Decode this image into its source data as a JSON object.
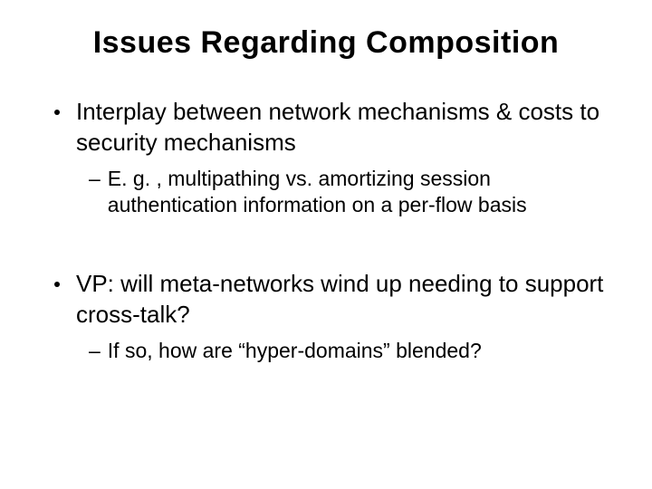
{
  "slide": {
    "title": "Issues Regarding Composition",
    "sections": [
      {
        "bullet": "Interplay between network mechanisms & costs to security mechanisms",
        "sub": "E. g. , multipathing vs. amortizing session authentication information on a per-flow basis"
      },
      {
        "bullet": "VP: will meta-networks wind up needing to support cross-talk?",
        "sub": "If so, how are “hyper-domains” blended?"
      }
    ],
    "colors": {
      "background": "#ffffff",
      "text": "#000000"
    },
    "typography": {
      "title_fontsize": 34,
      "bullet_fontsize": 26,
      "sub_fontsize": 23,
      "font_family": "Arial"
    }
  }
}
